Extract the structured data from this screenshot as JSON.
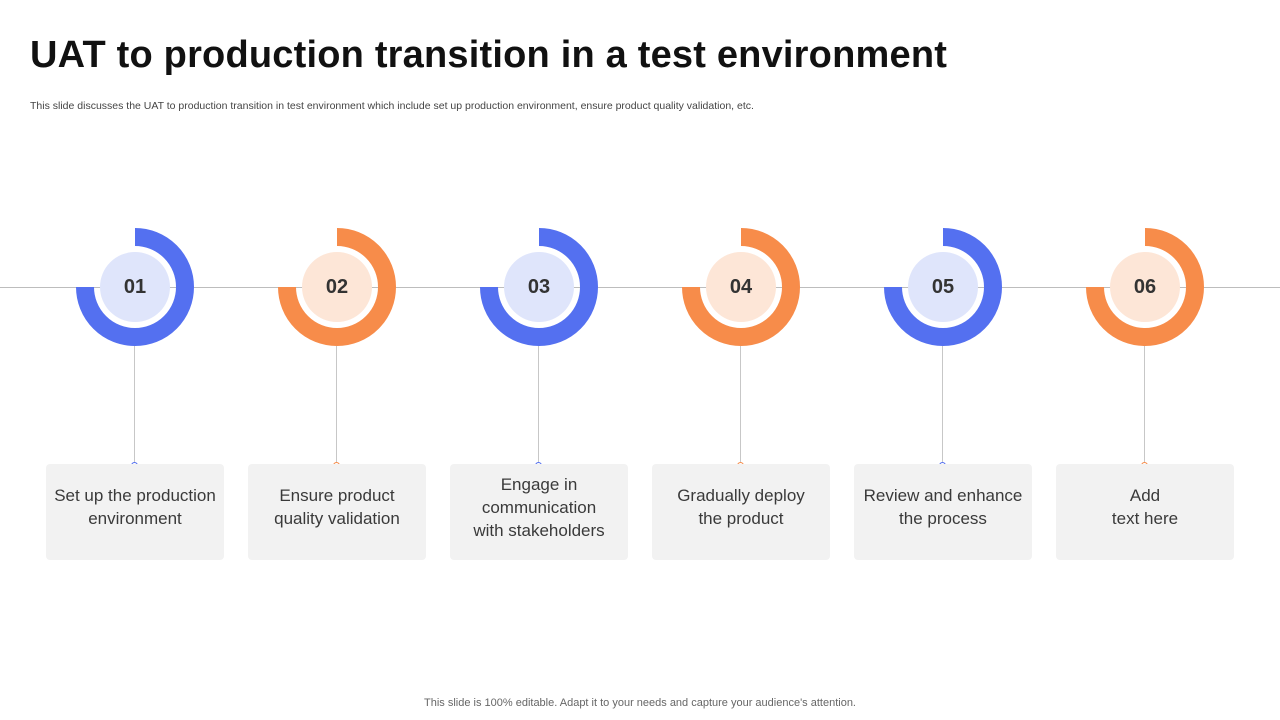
{
  "title": "UAT to production transition in a test environment",
  "subtitle": "This slide discusses the UAT to production transition in test environment which include set up production environment, ensure product quality validation, etc.",
  "colors": {
    "blue": "#5470f0",
    "blue_light": "#dfe5fb",
    "orange": "#f78c4a",
    "orange_light": "#fde6d7",
    "line": "#bdbdbd",
    "box": "#f2f2f2"
  },
  "steps": [
    {
      "number": "01",
      "text": "Set up the production\nenvironment",
      "color": "blue"
    },
    {
      "number": "02",
      "text": "Ensure product\nquality validation",
      "color": "orange"
    },
    {
      "number": "03",
      "text": "Engage in communication\nwith stakeholders",
      "color": "blue"
    },
    {
      "number": "04",
      "text": "Gradually deploy\nthe product",
      "color": "orange"
    },
    {
      "number": "05",
      "text": "Review and enhance\nthe process",
      "color": "blue"
    },
    {
      "number": "06",
      "text": "Add\ntext here",
      "color": "orange"
    }
  ],
  "footer": "This slide is 100% editable. Adapt it to your needs and capture your audience's attention."
}
